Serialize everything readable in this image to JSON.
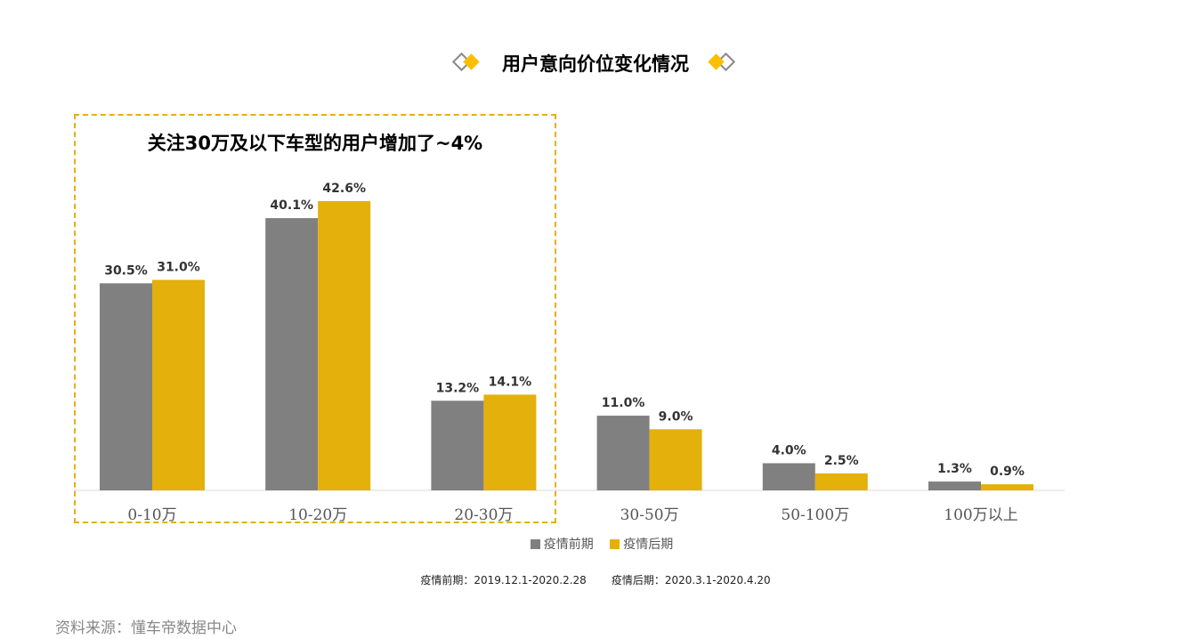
{
  "chart_data": {
    "type": "bar",
    "title": "用户意向价位变化情况",
    "annotation": "关注30万及以下车型的用户增加了~4%",
    "categories": [
      "0-10万",
      "10-20万",
      "20-30万",
      "30-50万",
      "50-100万",
      "100万以上"
    ],
    "series": [
      {
        "name": "疫情前期",
        "color": "#808080",
        "values": [
          30.5,
          40.1,
          13.2,
          11.0,
          4.0,
          1.3
        ],
        "labels": [
          "30.5%",
          "40.1%",
          "13.2%",
          "11.0%",
          "4.0%",
          "1.3%"
        ]
      },
      {
        "name": "疫情后期",
        "color": "#e3b00c",
        "values": [
          31.0,
          42.6,
          14.1,
          9.0,
          2.5,
          0.9
        ],
        "labels": [
          "31.0%",
          "42.6%",
          "14.1%",
          "9.0%",
          "2.5%",
          "0.9%"
        ]
      }
    ],
    "ylim": [
      0,
      45
    ],
    "grid": false,
    "legend": "bottom"
  },
  "periods": {
    "before": "疫情前期：2019.12.1-2020.2.28",
    "after": "疫情后期：2020.3.1-2020.4.20"
  },
  "source": "资料来源：懂车帝数据中心"
}
